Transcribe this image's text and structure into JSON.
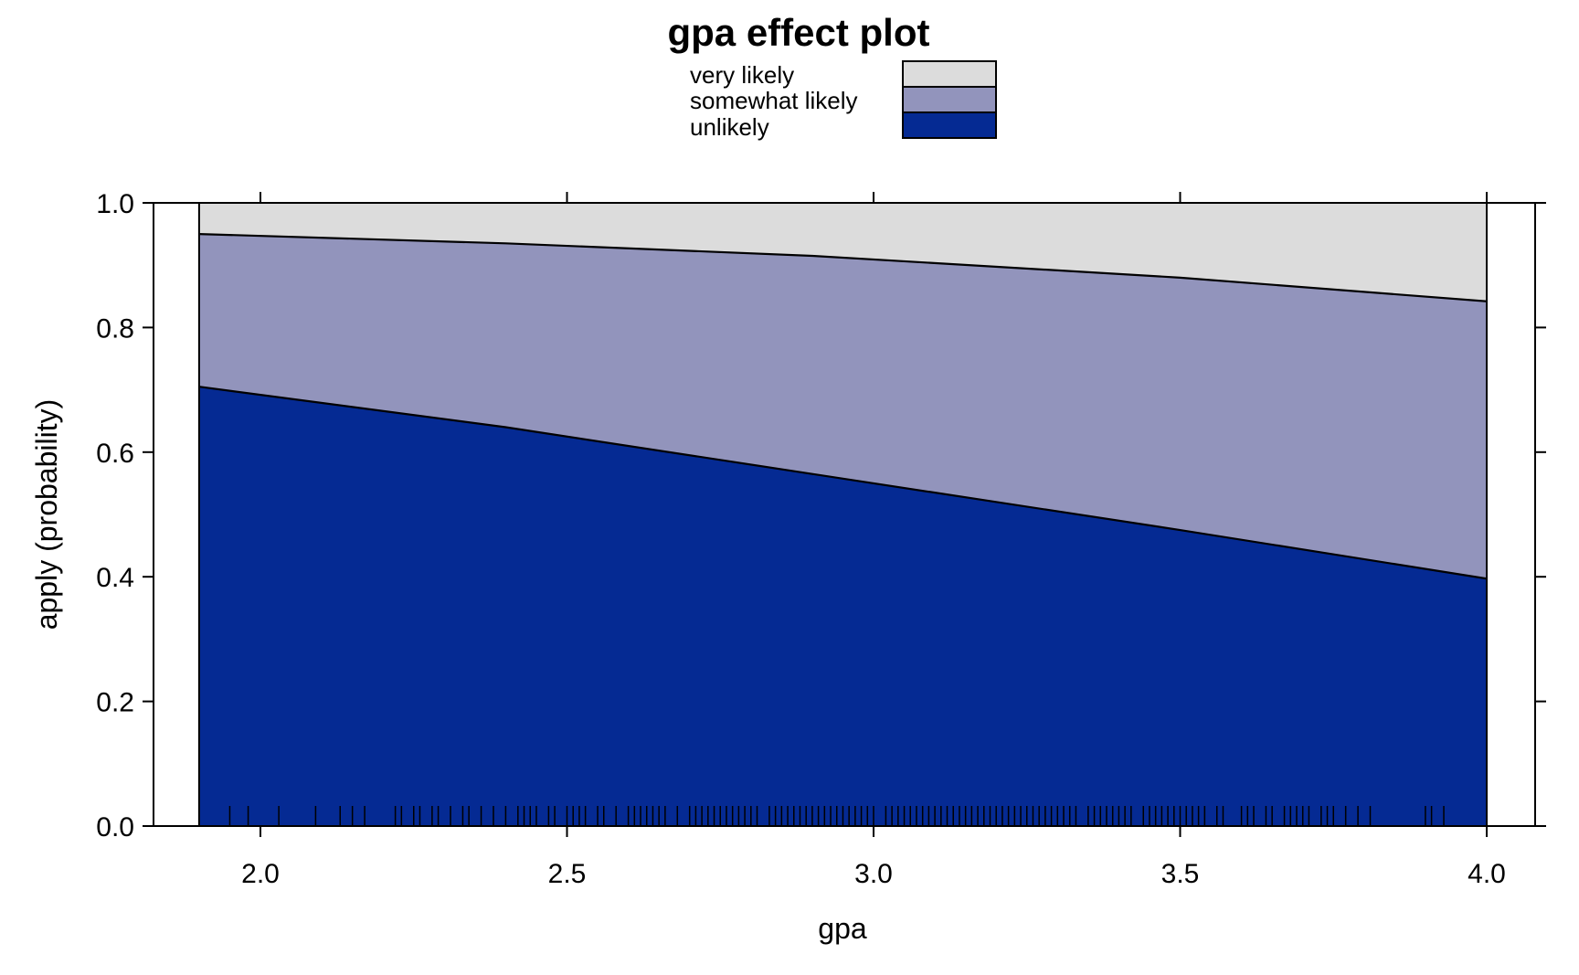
{
  "chart_data": {
    "type": "area",
    "stacked": true,
    "title": "gpa effect plot",
    "xlabel": "gpa",
    "ylabel": "apply (probability)",
    "xlim": [
      1.9,
      4.0
    ],
    "ylim": [
      0,
      1
    ],
    "x_ticks": [
      "2.0",
      "2.5",
      "3.0",
      "3.5",
      "4.0"
    ],
    "y_ticks": [
      "0.0",
      "0.2",
      "0.4",
      "0.6",
      "0.8",
      "1.0"
    ],
    "legend": {
      "placement": "top-center",
      "entries": [
        "very likely",
        "somewhat likely",
        "unlikely"
      ]
    },
    "colors": {
      "very likely": "#dcdcdc",
      "somewhat likely": "#9294bc",
      "unlikely": "#052a93"
    },
    "x": [
      1.9,
      2.4,
      2.9,
      3.5,
      4.0
    ],
    "series": [
      {
        "name": "unlikely",
        "cumulative": [
          0.705,
          0.64,
          0.565,
          0.475,
          0.397
        ]
      },
      {
        "name": "somewhat likely",
        "cumulative": [
          0.95,
          0.935,
          0.915,
          0.88,
          0.842
        ]
      },
      {
        "name": "very likely",
        "cumulative": [
          1.0,
          1.0,
          1.0,
          1.0,
          1.0
        ]
      }
    ],
    "rug": [
      1.95,
      1.98,
      2.03,
      2.09,
      2.13,
      2.15,
      2.17,
      2.22,
      2.23,
      2.25,
      2.26,
      2.28,
      2.29,
      2.31,
      2.33,
      2.34,
      2.36,
      2.38,
      2.4,
      2.42,
      2.43,
      2.44,
      2.45,
      2.47,
      2.48,
      2.5,
      2.51,
      2.52,
      2.53,
      2.55,
      2.56,
      2.58,
      2.6,
      2.61,
      2.62,
      2.63,
      2.64,
      2.65,
      2.66,
      2.68,
      2.7,
      2.71,
      2.72,
      2.73,
      2.74,
      2.75,
      2.76,
      2.77,
      2.78,
      2.79,
      2.8,
      2.81,
      2.83,
      2.84,
      2.85,
      2.86,
      2.87,
      2.88,
      2.89,
      2.9,
      2.91,
      2.92,
      2.93,
      2.94,
      2.95,
      2.96,
      2.97,
      2.98,
      2.99,
      3.0,
      3.02,
      3.03,
      3.04,
      3.05,
      3.06,
      3.07,
      3.08,
      3.09,
      3.1,
      3.11,
      3.12,
      3.13,
      3.14,
      3.15,
      3.16,
      3.17,
      3.18,
      3.19,
      3.2,
      3.21,
      3.22,
      3.23,
      3.24,
      3.25,
      3.26,
      3.27,
      3.28,
      3.29,
      3.3,
      3.31,
      3.32,
      3.33,
      3.35,
      3.36,
      3.37,
      3.38,
      3.39,
      3.4,
      3.41,
      3.42,
      3.44,
      3.45,
      3.46,
      3.47,
      3.48,
      3.49,
      3.5,
      3.51,
      3.52,
      3.53,
      3.54,
      3.56,
      3.57,
      3.6,
      3.61,
      3.62,
      3.64,
      3.65,
      3.67,
      3.68,
      3.69,
      3.7,
      3.71,
      3.73,
      3.74,
      3.75,
      3.77,
      3.79,
      3.81,
      3.9,
      3.91,
      3.93
    ]
  }
}
